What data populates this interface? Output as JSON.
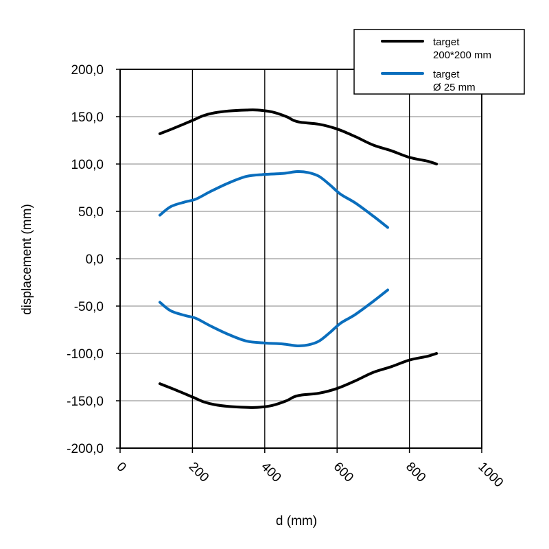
{
  "chart_data": {
    "type": "line",
    "title": "",
    "xlabel": "d (mm)",
    "ylabel": "displacement (mm)",
    "xlim": [
      0,
      1000
    ],
    "ylim": [
      -200,
      200
    ],
    "xticks": [
      0,
      200,
      400,
      600,
      800,
      1000
    ],
    "xtick_labels": [
      "0",
      "200",
      "400",
      "600",
      "800",
      "1000"
    ],
    "yticks": [
      200,
      150,
      100,
      50,
      0,
      -50,
      -100,
      -150,
      -200
    ],
    "ytick_labels": [
      "200,0",
      "150,0",
      "100,0",
      "50,0",
      "0,0",
      "-50,0",
      "-100,0",
      "-150,0",
      "-200,0"
    ],
    "grid": "on",
    "legend_position": "top-right",
    "legend": [
      {
        "lines": [
          "target",
          "200*200 mm"
        ],
        "color": "#000000"
      },
      {
        "lines": [
          "target",
          "Ø 25 mm"
        ],
        "color": "#0a6ebd"
      }
    ],
    "series": [
      {
        "color": "#000000",
        "legend_index": 0,
        "x": [
          110,
          150,
          200,
          230,
          260,
          300,
          350,
          380,
          420,
          460,
          480,
          500,
          550,
          600,
          650,
          700,
          750,
          800,
          850,
          875
        ],
        "y": [
          132,
          138,
          146,
          151,
          154,
          156,
          157,
          157,
          155,
          150,
          146,
          144,
          142,
          137,
          129,
          120,
          114,
          107,
          103,
          100
        ]
      },
      {
        "color": "#000000",
        "legend_index": 0,
        "x": [
          110,
          150,
          200,
          230,
          260,
          300,
          350,
          380,
          420,
          460,
          480,
          500,
          550,
          600,
          650,
          700,
          750,
          800,
          850,
          875
        ],
        "y": [
          -132,
          -138,
          -146,
          -151,
          -154,
          -156,
          -157,
          -157,
          -155,
          -150,
          -146,
          -144,
          -142,
          -137,
          -129,
          -120,
          -114,
          -107,
          -103,
          -100
        ]
      },
      {
        "color": "#0a6ebd",
        "legend_index": 1,
        "x": [
          110,
          140,
          180,
          210,
          250,
          300,
          350,
          400,
          450,
          490,
          520,
          550,
          580,
          610,
          650,
          700,
          740
        ],
        "y": [
          46,
          55,
          60,
          63,
          71,
          80,
          87,
          89,
          90,
          92,
          91,
          87,
          78,
          68,
          59,
          45,
          33
        ]
      },
      {
        "color": "#0a6ebd",
        "legend_index": 1,
        "x": [
          110,
          140,
          180,
          210,
          250,
          300,
          350,
          400,
          450,
          490,
          520,
          550,
          580,
          610,
          650,
          700,
          740
        ],
        "y": [
          -46,
          -55,
          -60,
          -63,
          -71,
          -80,
          -87,
          -89,
          -90,
          -92,
          -91,
          -87,
          -78,
          -68,
          -59,
          -45,
          -33
        ]
      }
    ]
  }
}
